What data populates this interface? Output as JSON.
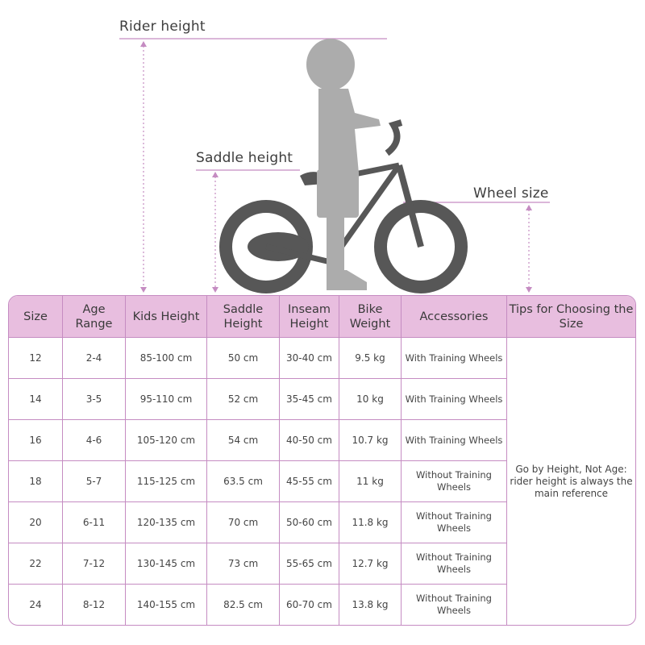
{
  "labels": {
    "rider_height": "Rider height",
    "saddle_height": "Saddle height",
    "wheel_size": "Wheel size"
  },
  "colors": {
    "accent": "#c58cc2",
    "header_bg": "#e8bedf",
    "bike": "#575757",
    "child": "#acacac"
  },
  "table": {
    "headers": [
      "Size",
      "Age Range",
      "Kids Height",
      "Saddle Height",
      "Inseam Height",
      "Bike Weight",
      "Accessories",
      "Tips for Choosing the Size"
    ],
    "rows": [
      [
        "12",
        "2-4",
        "85-100 cm",
        "50 cm",
        "30-40 cm",
        "9.5 kg",
        "With Training Wheels"
      ],
      [
        "14",
        "3-5",
        "95-110 cm",
        "52 cm",
        "35-45 cm",
        "10 kg",
        "With Training Wheels"
      ],
      [
        "16",
        "4-6",
        "105-120 cm",
        "54 cm",
        "40-50 cm",
        "10.7 kg",
        "With Training Wheels"
      ],
      [
        "18",
        "5-7",
        "115-125 cm",
        "63.5 cm",
        "45-55 cm",
        "11 kg",
        "Without Training Wheels"
      ],
      [
        "20",
        "6-11",
        "120-135 cm",
        "70 cm",
        "50-60 cm",
        "11.8 kg",
        "Without Training Wheels"
      ],
      [
        "22",
        "7-12",
        "130-145 cm",
        "73 cm",
        "55-65 cm",
        "12.7 kg",
        "Without Training Wheels"
      ],
      [
        "24",
        "8-12",
        "140-155 cm",
        "82.5 cm",
        "60-70 cm",
        "13.8 kg",
        "Without Training Wheels"
      ]
    ],
    "tip": "Go by Height, Not Age: rider height is always the main reference"
  }
}
